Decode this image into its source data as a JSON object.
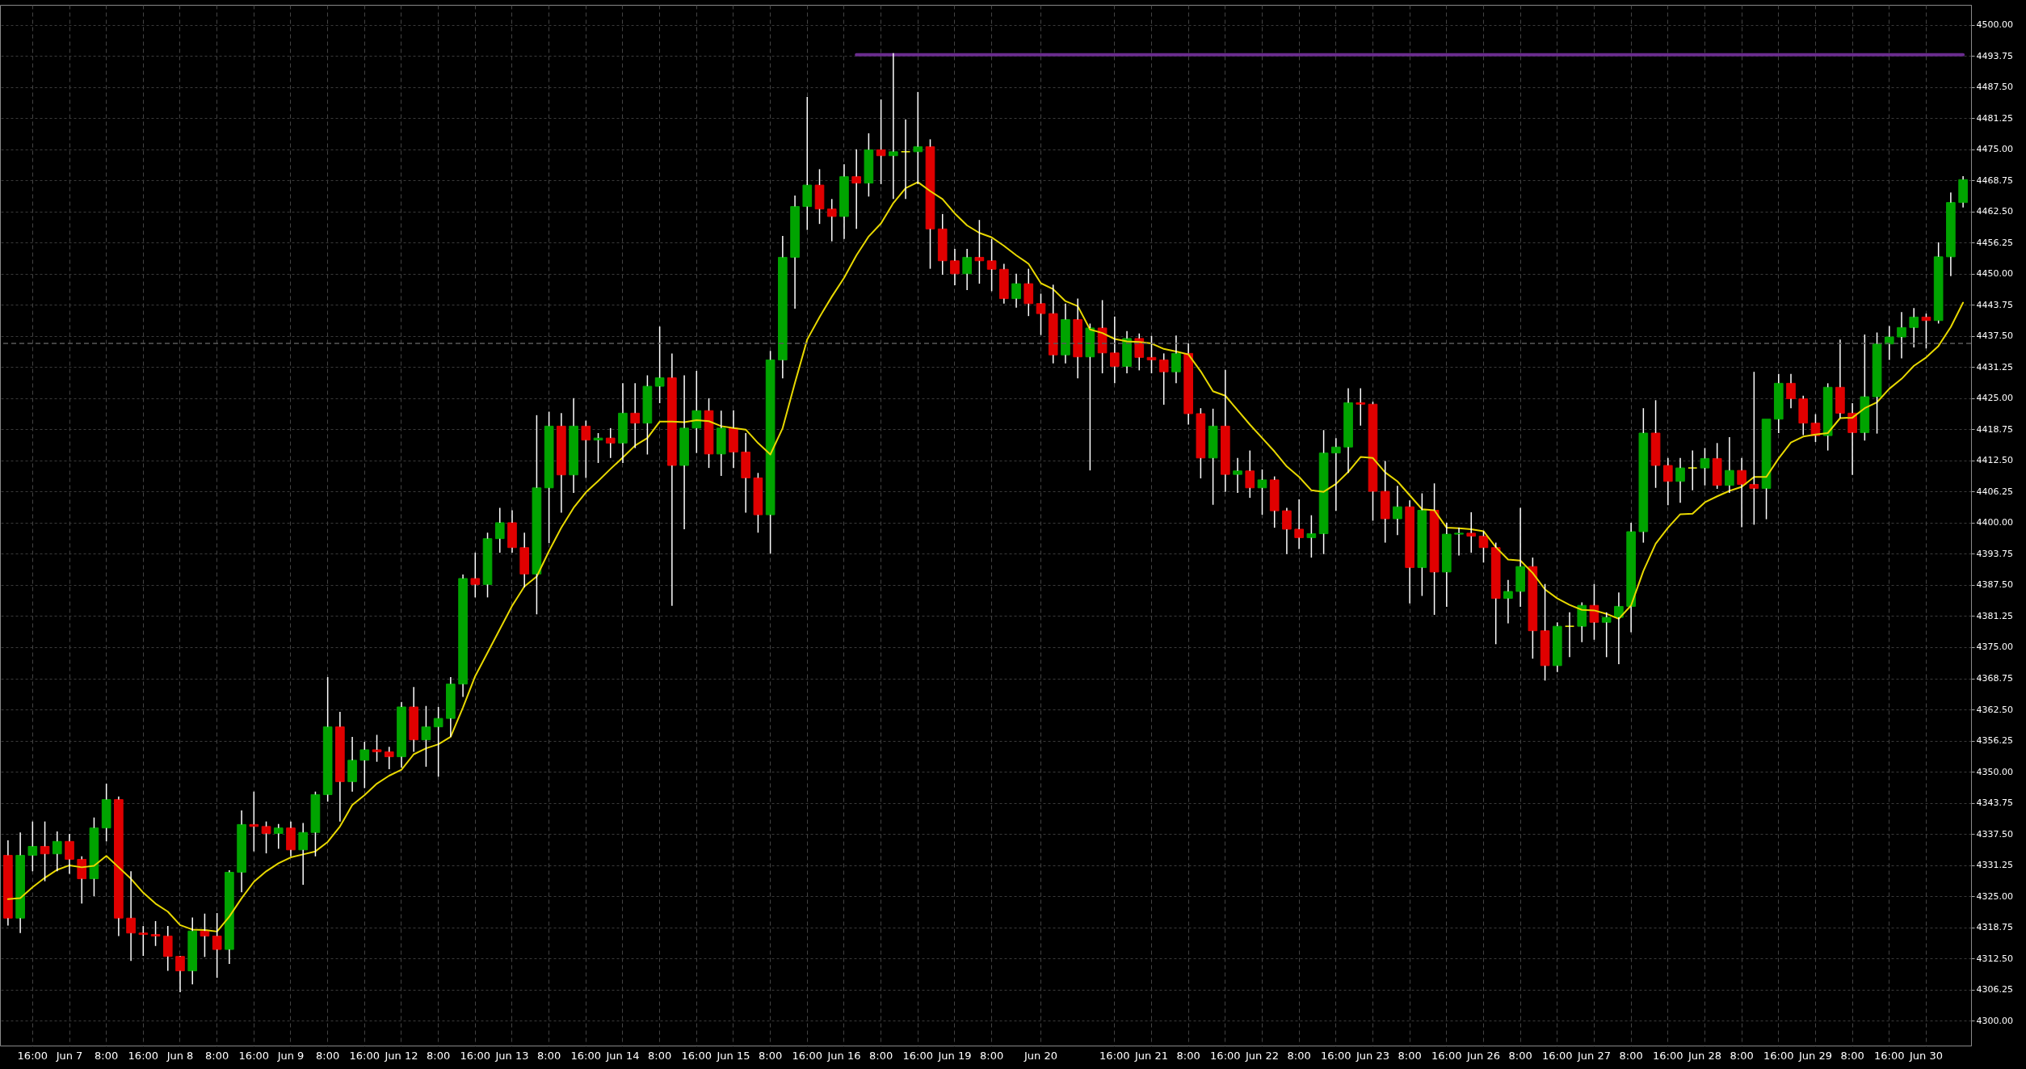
{
  "chart_data": {
    "type": "candlestick",
    "categories": [
      null,
      null,
      "16:00",
      null,
      null,
      "Jun 7",
      null,
      null,
      "8:00",
      null,
      null,
      "16:00",
      null,
      null,
      "Jun 8",
      null,
      null,
      "8:00",
      null,
      null,
      "16:00",
      null,
      null,
      "Jun 9",
      null,
      null,
      "8:00",
      null,
      null,
      "16:00",
      null,
      null,
      "Jun 12",
      null,
      null,
      "8:00",
      null,
      null,
      "16:00",
      null,
      null,
      "Jun 13",
      null,
      null,
      "8:00",
      null,
      null,
      "16:00",
      null,
      null,
      "Jun 14",
      null,
      null,
      "8:00",
      null,
      null,
      "16:00",
      null,
      null,
      "Jun 15",
      null,
      null,
      "8:00",
      null,
      null,
      "16:00",
      null,
      null,
      "Jun 16",
      null,
      null,
      "8:00",
      null,
      null,
      "16:00",
      null,
      null,
      "Jun 19",
      null,
      null,
      "8:00",
      null,
      null,
      null,
      "Jun 20",
      null,
      null,
      null,
      null,
      null,
      "16:00",
      null,
      null,
      "Jun 21",
      null,
      null,
      "8:00",
      null,
      null,
      "16:00",
      null,
      null,
      "Jun 22",
      null,
      null,
      "8:00",
      null,
      null,
      "16:00",
      null,
      null,
      "Jun 23",
      null,
      null,
      "8:00",
      null,
      null,
      "16:00",
      null,
      null,
      "Jun 26",
      null,
      null,
      "8:00",
      null,
      null,
      "16:00",
      null,
      null,
      "Jun 27",
      null,
      null,
      "8:00",
      null,
      null,
      "16:00",
      null,
      null,
      "Jun 28",
      null,
      null,
      "8:00",
      null,
      null,
      "16:00",
      null,
      null,
      "Jun 29",
      null,
      null,
      "8:00",
      null,
      null,
      "16:00",
      null,
      null,
      "Jun 30",
      null,
      null,
      null
    ],
    "ohlc": [
      [
        4333.2,
        4336.2,
        4319.1,
        4320.6
      ],
      [
        4320.6,
        4337.8,
        4317.6,
        4333.2
      ],
      [
        4333.2,
        4340,
        4330,
        4335
      ],
      [
        4335,
        4340,
        4328,
        4333.5
      ],
      [
        4333.5,
        4338,
        4330,
        4336
      ],
      [
        4336,
        4337.5,
        4329.5,
        4332.4
      ],
      [
        4332.4,
        4333,
        4323.5,
        4328.5
      ],
      [
        4328.5,
        4340.8,
        4325,
        4338.7
      ],
      [
        4338.7,
        4347.6,
        4336,
        4344.4
      ],
      [
        4344.4,
        4345,
        4317,
        4320.6
      ],
      [
        4320.6,
        4330,
        4312,
        4317.6
      ],
      [
        4317.6,
        4319,
        4313,
        4317.3
      ],
      [
        4317.3,
        4320,
        4315,
        4317
      ],
      [
        4317,
        4319,
        4310,
        4312.9
      ],
      [
        4312.9,
        4313,
        4305.7,
        4310
      ],
      [
        4310,
        4320.7,
        4307.3,
        4318
      ],
      [
        4318,
        4321.5,
        4312.8,
        4317
      ],
      [
        4317,
        4321.6,
        4308.6,
        4314.3
      ],
      [
        4314.3,
        4330.2,
        4311.4,
        4329.8
      ],
      [
        4329.8,
        4342.2,
        4325.8,
        4339.4
      ],
      [
        4339.4,
        4346,
        4334,
        4339
      ],
      [
        4339,
        4340,
        4333.6,
        4337.6
      ],
      [
        4337.6,
        4339.5,
        4334.5,
        4338.7
      ],
      [
        4338.7,
        4340,
        4333,
        4334.3
      ],
      [
        4334.3,
        4339.7,
        4327.3,
        4337.8
      ],
      [
        4337.8,
        4346,
        4333,
        4345.4
      ],
      [
        4345.4,
        4369,
        4344,
        4359
      ],
      [
        4359,
        4362,
        4340,
        4348
      ],
      [
        4348,
        4357,
        4346,
        4352.3
      ],
      [
        4352.3,
        4356,
        4346.7,
        4354.4
      ],
      [
        4354.4,
        4357.4,
        4352,
        4354
      ],
      [
        4354,
        4355,
        4350.5,
        4353
      ],
      [
        4353,
        4364,
        4350.8,
        4363
      ],
      [
        4363,
        4367,
        4354,
        4356.4
      ],
      [
        4356.4,
        4363.2,
        4351,
        4359
      ],
      [
        4359,
        4363,
        4349,
        4360.7
      ],
      [
        4360.7,
        4369,
        4357,
        4367.6
      ],
      [
        4367.6,
        4389.6,
        4365,
        4388.8
      ],
      [
        4388.8,
        4394,
        4385,
        4387.6
      ],
      [
        4387.6,
        4398,
        4385,
        4396.8
      ],
      [
        4396.8,
        4403,
        4394,
        4400
      ],
      [
        4400,
        4402.5,
        4394,
        4395
      ],
      [
        4395,
        4398,
        4387,
        4389.7
      ],
      [
        4389.7,
        4421.6,
        4381.6,
        4407
      ],
      [
        4407,
        4422.3,
        4395.9,
        4419.4
      ],
      [
        4419.4,
        4422,
        4402,
        4409.6
      ],
      [
        4409.6,
        4425,
        4406,
        4419.4
      ],
      [
        4419.4,
        4420.5,
        4409,
        4416.6
      ],
      [
        4416.6,
        4418,
        4412,
        4417
      ],
      [
        4417,
        4419,
        4413,
        4416
      ],
      [
        4416,
        4428,
        4412,
        4422
      ],
      [
        4422,
        4428,
        4415,
        4420
      ],
      [
        4420,
        4429.6,
        4413.7,
        4427.4
      ],
      [
        4427.4,
        4439.4,
        4424,
        4429.1
      ],
      [
        4429.1,
        4434,
        4383.3,
        4411.5
      ],
      [
        4411.5,
        4429.6,
        4398.7,
        4419
      ],
      [
        4419,
        4430.5,
        4414,
        4422.5
      ],
      [
        4422.5,
        4425,
        4411,
        4413.8
      ],
      [
        4413.8,
        4422.5,
        4409.4,
        4419
      ],
      [
        4419,
        4422.6,
        4411,
        4414.2
      ],
      [
        4414.2,
        4418,
        4402,
        4409
      ],
      [
        4409,
        4410,
        4398,
        4401.6
      ],
      [
        4401.6,
        4434.5,
        4393.8,
        4432.7
      ],
      [
        4432.7,
        4457.6,
        4429,
        4453.3
      ],
      [
        4453.3,
        4465.7,
        4443,
        4463.5
      ],
      [
        4463.5,
        4485.5,
        4458.8,
        4467.8
      ],
      [
        4467.8,
        4471,
        4460,
        4463
      ],
      [
        4463,
        4465,
        4456.5,
        4461.5
      ],
      [
        4461.5,
        4472,
        4457,
        4469.5
      ],
      [
        4469.5,
        4475,
        4459,
        4468.2
      ],
      [
        4468.2,
        4478.2,
        4465.5,
        4474.9
      ],
      [
        4474.9,
        4485,
        4468,
        4473.7
      ],
      [
        4473.7,
        4494.3,
        4465,
        4474.5
      ],
      [
        4474.5,
        4481,
        4465,
        4474.5
      ],
      [
        4474.5,
        4486.5,
        4468,
        4475.5
      ],
      [
        4475.5,
        4477,
        4451,
        4459
      ],
      [
        4459,
        4462,
        4449.8,
        4452.6
      ],
      [
        4452.6,
        4455,
        4447.7,
        4450
      ],
      [
        4450,
        4455,
        4446.7,
        4453.3
      ],
      [
        4453.3,
        4460.8,
        4448,
        4452.6
      ],
      [
        4452.6,
        4457,
        4446.5,
        4450.9
      ],
      [
        4450.9,
        4452,
        4444,
        4445
      ],
      [
        4445,
        4450,
        4443.2,
        4448
      ],
      [
        4448,
        4451,
        4441.5,
        4444
      ],
      [
        4444,
        4446,
        4437.7,
        4442
      ],
      [
        4442,
        4447.8,
        4432,
        4433.7
      ],
      [
        4433.7,
        4444,
        4432,
        4440.8
      ],
      [
        4440.8,
        4445,
        4429,
        4433.3
      ],
      [
        4433.3,
        4440,
        4410.5,
        4439.1
      ],
      [
        4439.1,
        4444.7,
        4430,
        4434.1
      ],
      [
        4434.1,
        4441.4,
        4428,
        4431.4
      ],
      [
        4431.4,
        4438.5,
        4430,
        4437
      ],
      [
        4437,
        4438,
        4430.6,
        4433.2
      ],
      [
        4433.2,
        4437.5,
        4430,
        4432.7
      ],
      [
        4432.7,
        4434,
        4423.7,
        4430.3
      ],
      [
        4430.3,
        4437.6,
        4428,
        4434
      ],
      [
        4434,
        4436,
        4419.7,
        4421.9
      ],
      [
        4421.9,
        4423,
        4408.9,
        4413
      ],
      [
        4413,
        4422.9,
        4403.6,
        4419.4
      ],
      [
        4419.4,
        4430.7,
        4406.2,
        4409.7
      ],
      [
        4409.7,
        4413,
        4406,
        4410.4
      ],
      [
        4410.4,
        4414.5,
        4405,
        4407
      ],
      [
        4407,
        4410.7,
        4401.6,
        4408.6
      ],
      [
        4408.6,
        4409.3,
        4399,
        4402.4
      ],
      [
        4402.4,
        4403,
        4393.7,
        4398.7
      ],
      [
        4398.7,
        4404.7,
        4394.7,
        4397
      ],
      [
        4397,
        4401.5,
        4393,
        4397.8
      ],
      [
        4397.8,
        4418.6,
        4393.7,
        4414
      ],
      [
        4414,
        4417,
        4402.4,
        4415.2
      ],
      [
        4415.2,
        4427,
        4410,
        4424.1
      ],
      [
        4424.1,
        4427,
        4419.5,
        4423.8
      ],
      [
        4423.8,
        4424.3,
        4400.4,
        4406.3
      ],
      [
        4406.3,
        4412.4,
        4396,
        4400.8
      ],
      [
        4400.8,
        4407.4,
        4397.5,
        4403.2
      ],
      [
        4403.2,
        4404.5,
        4383.8,
        4391
      ],
      [
        4391,
        4405.9,
        4385.3,
        4402.5
      ],
      [
        4402.5,
        4407.9,
        4381.5,
        4390.1
      ],
      [
        4390.1,
        4400,
        4383.1,
        4397.7
      ],
      [
        4397.7,
        4399,
        4393.4,
        4397.9
      ],
      [
        4397.9,
        4402.1,
        4394,
        4397.3
      ],
      [
        4397.3,
        4398.3,
        4392,
        4395
      ],
      [
        4395,
        4396,
        4375.6,
        4384.8
      ],
      [
        4384.8,
        4388.5,
        4379.8,
        4386.2
      ],
      [
        4386.2,
        4403,
        4383.1,
        4391.2
      ],
      [
        4391.2,
        4393,
        4372.7,
        4378.3
      ],
      [
        4378.3,
        4387.7,
        4368.3,
        4371.3
      ],
      [
        4371.3,
        4380,
        4370,
        4379.2
      ],
      [
        4379.2,
        4382,
        4373,
        4379.2
      ],
      [
        4379.2,
        4384,
        4376,
        4383.4
      ],
      [
        4383.4,
        4387.7,
        4376.5,
        4380
      ],
      [
        4380,
        4382,
        4373,
        4381
      ],
      [
        4381,
        4386,
        4371.6,
        4383.2
      ],
      [
        4383.2,
        4400,
        4378,
        4398.2
      ],
      [
        4398.2,
        4423,
        4396,
        4418
      ],
      [
        4418,
        4424.6,
        4407,
        4411.5
      ],
      [
        4411.5,
        4413,
        4403.5,
        4408.3
      ],
      [
        4408.3,
        4413,
        4404,
        4411
      ],
      [
        4411,
        4414.5,
        4406.5,
        4411
      ],
      [
        4411,
        4415,
        4407.5,
        4412.9
      ],
      [
        4412.9,
        4416,
        4406.8,
        4407.5
      ],
      [
        4407.5,
        4417.2,
        4406,
        4410.5
      ],
      [
        4410.5,
        4413,
        4399.1,
        4407.7
      ],
      [
        4407.7,
        4430.3,
        4399.6,
        4406.9
      ],
      [
        4406.9,
        4420.8,
        4400.7,
        4420.8
      ],
      [
        4420.8,
        4429.9,
        4418,
        4428
      ],
      [
        4428,
        4429.9,
        4423,
        4424.9
      ],
      [
        4424.9,
        4425.5,
        4417.6,
        4420
      ],
      [
        4420,
        4421.8,
        4416.2,
        4417.5
      ],
      [
        4417.5,
        4428,
        4414.5,
        4427.2
      ],
      [
        4427.2,
        4436.8,
        4421,
        4422
      ],
      [
        4422,
        4424,
        4409.6,
        4418.1
      ],
      [
        4418.1,
        4437.8,
        4416.5,
        4425.3
      ],
      [
        4425.3,
        4438.2,
        4417.9,
        4435.9
      ],
      [
        4435.9,
        4439.5,
        4432.7,
        4437.3
      ],
      [
        4437.3,
        4442.3,
        4433,
        4439.2
      ],
      [
        4439.2,
        4443.1,
        4435.2,
        4441.3
      ],
      [
        4441.3,
        4442,
        4435,
        4440.6
      ],
      [
        4440.6,
        4456.3,
        4440,
        4453.4
      ],
      [
        4453.4,
        4466.3,
        4449.5,
        4464.3
      ],
      [
        4464.3,
        4469.6,
        4463.3,
        4468.9
      ]
    ],
    "colors": [
      "#e00000",
      "#00a400",
      "#00a400",
      "#e00000",
      "#00a400",
      "#e00000",
      "#e00000",
      "#00a400",
      "#00a400",
      "#e00000",
      "#e00000",
      "#e00000",
      "#e00000",
      "#e00000",
      "#e00000",
      "#00a400",
      "#e00000",
      "#e00000",
      "#00a400",
      "#00a400",
      "#e00000",
      "#e00000",
      "#00a400",
      "#e00000",
      "#00a400",
      "#00a400",
      "#00a400",
      "#e00000",
      "#00a400",
      "#00a400",
      "#e00000",
      "#e00000",
      "#00a400",
      "#e00000",
      "#00a400",
      "#00a400",
      "#00a400",
      "#00a400",
      "#e00000",
      "#00a400",
      "#00a400",
      "#e00000",
      "#e00000",
      "#00a400",
      "#00a400",
      "#e00000",
      "#00a400",
      "#e00000",
      "#00a400",
      "#e00000",
      "#00a400",
      "#e00000",
      "#00a400",
      "#00a400",
      "#e00000",
      "#00a400",
      "#00a400",
      "#e00000",
      "#00a400",
      "#e00000",
      "#e00000",
      "#e00000",
      "#00a400",
      "#00a400",
      "#00a400",
      "#00a400",
      "#e00000",
      "#e00000",
      "#00a400",
      "#e00000",
      "#00a400",
      "#e00000",
      "#00a400",
      "#ffff00",
      "#00a400",
      "#e00000",
      "#e00000",
      "#e00000",
      "#00a400",
      "#e00000",
      "#e00000",
      "#e00000",
      "#00a400",
      "#e00000",
      "#e00000",
      "#e00000",
      "#00a400",
      "#e00000",
      "#00a400",
      "#e00000",
      "#e00000",
      "#00a400",
      "#e00000",
      "#e00000",
      "#e00000",
      "#00a400",
      "#e00000",
      "#e00000",
      "#00a400",
      "#e00000",
      "#00a400",
      "#e00000",
      "#00a400",
      "#e00000",
      "#e00000",
      "#e00000",
      "#00a400",
      "#00a400",
      "#00a400",
      "#00a400",
      "#e00000",
      "#e00000",
      "#e00000",
      "#00a400",
      "#e00000",
      "#00a400",
      "#e00000",
      "#00a400",
      "#00a400",
      "#e00000",
      "#e00000",
      "#e00000",
      "#00a400",
      "#00a400",
      "#e00000",
      "#e00000",
      "#00a400",
      "#ffff00",
      "#00a400",
      "#e00000",
      "#00a400",
      "#00a400",
      "#00a400",
      "#00a400",
      "#e00000",
      "#e00000",
      "#00a400",
      "#ffff00",
      "#00a400",
      "#e00000",
      "#00a400",
      "#e00000",
      "#e00000",
      "#00a400",
      "#00a400",
      "#e00000",
      "#e00000",
      "#e00000",
      "#00a400",
      "#e00000",
      "#e00000",
      "#00a400",
      "#00a400",
      "#00a400",
      "#00a400",
      "#00a400",
      "#e00000",
      "#00a400",
      "#00a400",
      "#00a400"
    ],
    "series": [
      {
        "type": "line",
        "color": "#e8d800",
        "values": [
          4324.4,
          4324.6,
          4326.8,
          4328.7,
          4330.3,
          4331.2,
          4330.8,
          4331.1,
          4333.1,
          4330.8,
          4328.5,
          4325.7,
          4323.5,
          4321.9,
          4319.2,
          4318.3,
          4318.2,
          4317.9,
          4320.9,
          4324.6,
          4327.9,
          4330,
          4331.6,
          4332.8,
          4333.4,
          4334,
          4335.9,
          4339,
          4343.3,
          4345.3,
          4347.6,
          4349.2,
          4350.4,
          4353.5,
          4354.7,
          4355.5,
          4357,
          4362.9,
          4369.2,
          4373.9,
          4378.6,
          4383.3,
          4387.2,
          4389.2,
          4394.3,
          4399,
          4403,
          4406.1,
          4408.4,
          4410.8,
          4413.1,
          4415.5,
          4417,
          4420.3,
          4420.3,
          4420.2,
          4420.6,
          4420.4,
          4419.4,
          4419,
          4418.7,
          4416,
          4413.7,
          4419,
          4428.1,
          4436.8,
          4441.3,
          4445.4,
          4449.2,
          4453.7,
          4457.5,
          4460.1,
          4464.2,
          4467.2,
          4468.4,
          4466.6,
          4465,
          4462.1,
          4459.7,
          4458.2,
          4457.3,
          4455.6,
          4453.7,
          4452,
          4448.1,
          4446.9,
          4444.5,
          4443.5,
          4438.8,
          4438.1,
          4436.9,
          4436.4,
          4436.3,
          4436,
          4434.9,
          4434.4,
          4433.8,
          4430.4,
          4426.4,
          4425.5,
          4422.6,
          4419.7,
          4417,
          4414.3,
          4411.3,
          4409.2,
          4406.5,
          4406.2,
          4407.8,
          4410.2,
          4413.2,
          4413,
          4410.1,
          4408.3,
          4405.5,
          4402.7,
          4402.5,
          4399,
          4398.9,
          4398.7,
          4398.3,
          4395.1,
          4392.6,
          4392.4,
          4389.9,
          4386.6,
          4384.8,
          4383.5,
          4382.5,
          4382.4,
          4381.7,
          4380.7,
          4383.4,
          4390.3,
          4395.8,
          4399,
          4401.7,
          4401.8,
          4404.1,
          4405.3,
          4406.4,
          4407.2,
          4409.2,
          4409.2,
          4412.9,
          4416.1,
          4417.3,
          4417.7,
          4418,
          4421,
          4421.1,
          4423,
          4424.2,
          4426.9,
          4428.9,
          4431.5,
          4433.2,
          4435.5,
          4439.3,
          4444.2
        ]
      },
      {
        "type": "line",
        "color": "#6a2c8e",
        "values": [
          null,
          null,
          null,
          null,
          null,
          null,
          null,
          null,
          null,
          null,
          null,
          null,
          null,
          null,
          null,
          null,
          null,
          null,
          null,
          null,
          null,
          null,
          null,
          null,
          null,
          null,
          null,
          null,
          null,
          null,
          null,
          null,
          null,
          null,
          null,
          null,
          null,
          null,
          null,
          null,
          null,
          null,
          null,
          null,
          null,
          null,
          null,
          null,
          null,
          null,
          null,
          null,
          null,
          null,
          null,
          null,
          null,
          null,
          null,
          null,
          null,
          null,
          null,
          null,
          null,
          null,
          null,
          null,
          null,
          4494,
          4494,
          4494,
          4494,
          4494,
          4494,
          4494,
          4494,
          4494,
          4494,
          4494,
          4494,
          4494,
          4494,
          4494,
          4494,
          4494,
          4494,
          4494,
          4494,
          4494,
          4494,
          4494,
          4494,
          4494,
          4494,
          4494,
          4494,
          4494,
          4494,
          4494,
          4494,
          4494,
          4494,
          4494,
          4494,
          4494,
          4494,
          4494,
          4494,
          4494,
          4494,
          4494,
          4494,
          4494,
          4494,
          4494,
          4494,
          4494,
          4494,
          4494,
          4494,
          4494,
          4494,
          4494,
          4494,
          4494,
          4494,
          4494,
          4494,
          4494,
          4494,
          4494,
          4494,
          4494,
          4494,
          4494,
          4494,
          4494,
          4494,
          4494,
          4494,
          4494,
          4494,
          4494,
          4494,
          4494,
          4494,
          4494,
          4494,
          4494,
          4494,
          4494,
          4494,
          4494,
          4494,
          4494,
          4494,
          4494,
          4494,
          4494
        ]
      }
    ],
    "ylim": [
      4295,
      4504
    ],
    "yticks": [
      {
        "value": 4300,
        "label": "4300.00"
      },
      4306.25,
      {
        "value": 4312.5,
        "label": "4312.50"
      },
      4318.75,
      {
        "value": 4325,
        "label": "4325.00"
      },
      4331.25,
      {
        "value": 4337.5,
        "label": "4337.50"
      },
      4343.75,
      {
        "value": 4350,
        "label": "4350.00"
      },
      4356.25,
      {
        "value": 4362.5,
        "label": "4362.50"
      },
      4368.75,
      {
        "value": 4375,
        "label": "4375.00"
      },
      4381.25,
      {
        "value": 4387.5,
        "label": "4387.50"
      },
      4393.75,
      {
        "value": 4400,
        "label": "4400.00"
      },
      4406.25,
      {
        "value": 4412.5,
        "label": "4412.50"
      },
      4418.75,
      {
        "value": 4425,
        "label": "4425.00"
      },
      4431.25,
      {
        "value": 4437.5,
        "label": "4437.50"
      },
      4443.75,
      {
        "value": 4450,
        "label": "4450.00"
      },
      4456.25,
      {
        "value": 4462.5,
        "label": "4462.50"
      },
      4468.75,
      {
        "value": 4475,
        "label": "4475.00"
      },
      4481.25,
      {
        "value": 4487.5,
        "label": "4487.50"
      },
      4493.75,
      {
        "value": 4500,
        "label": "4500.00"
      }
    ],
    "grid": true,
    "ref_lines": [
      {
        "axis": "y",
        "value": 4436,
        "color": "#5a5a5a",
        "line_style": "dashed"
      }
    ]
  }
}
